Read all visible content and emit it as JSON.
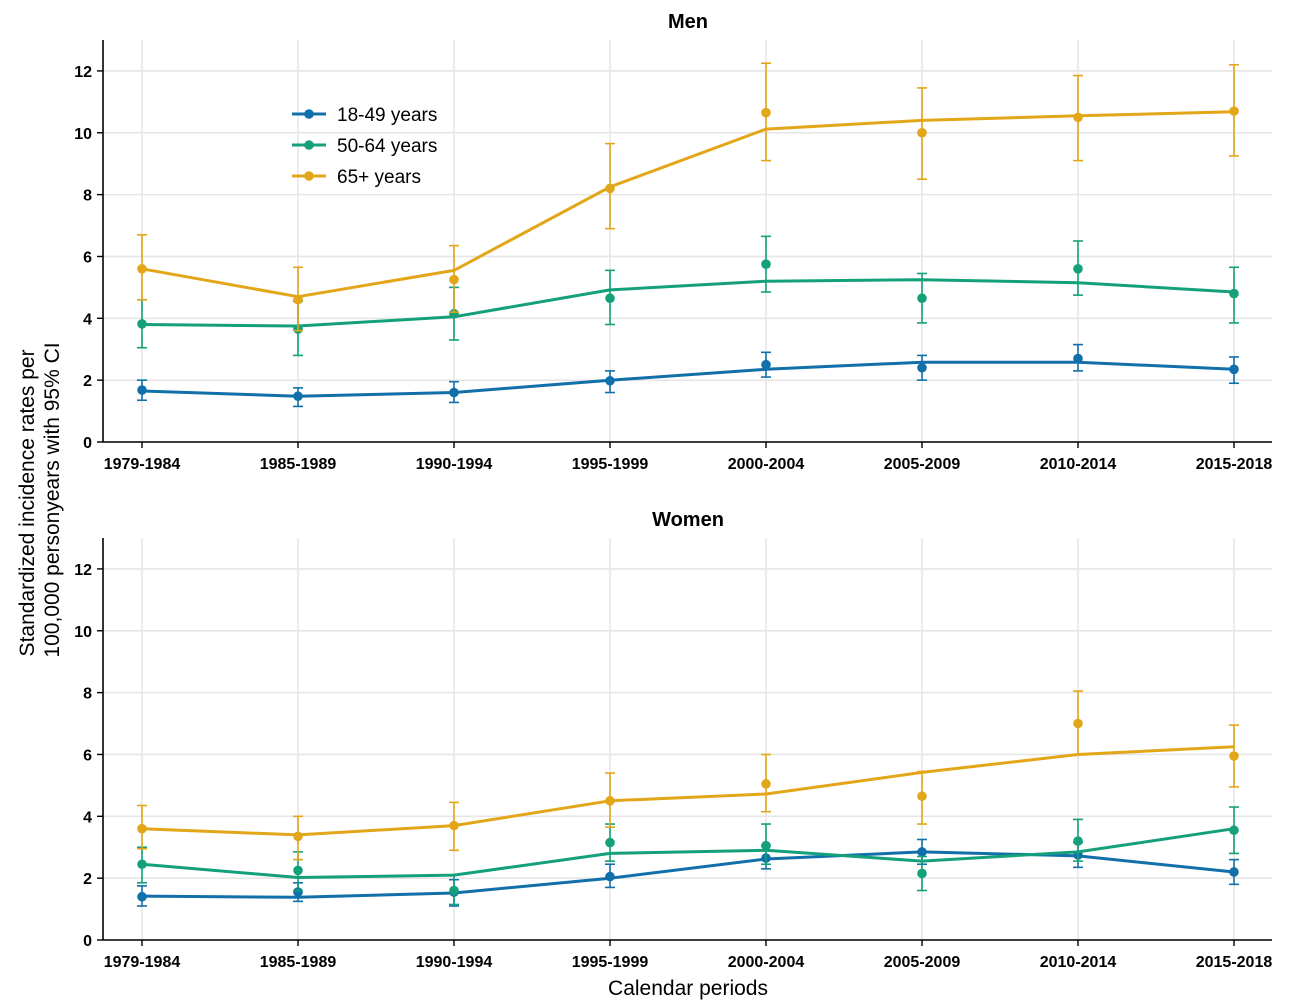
{
  "chart_data": [
    {
      "type": "line",
      "title": "Men",
      "categories": [
        "1979-1984",
        "1985-1989",
        "1990-1994",
        "1995-1999",
        "2000-2004",
        "2005-2009",
        "2010-2014",
        "2015-2018"
      ],
      "ylim": [
        0,
        13
      ],
      "yticks": [
        0,
        2,
        4,
        6,
        8,
        10,
        12
      ],
      "grid": true,
      "legend": "top-left",
      "series": [
        {
          "name": "18-49 years",
          "color": "#1170AA",
          "trend": [
            1.65,
            1.48,
            1.6,
            2.0,
            2.35,
            2.58,
            2.58,
            2.35
          ],
          "points": [
            1.68,
            1.48,
            1.6,
            1.98,
            2.5,
            2.4,
            2.7,
            2.35
          ],
          "ci_low": [
            1.35,
            1.15,
            1.28,
            1.6,
            2.1,
            2.0,
            2.3,
            1.9
          ],
          "ci_high": [
            2.0,
            1.75,
            1.95,
            2.3,
            2.9,
            2.8,
            3.15,
            2.75
          ]
        },
        {
          "name": "50-64 years",
          "color": "#14A07A",
          "trend": [
            3.8,
            3.75,
            4.05,
            4.92,
            5.2,
            5.25,
            5.15,
            4.85
          ],
          "points": [
            3.82,
            3.65,
            4.15,
            4.65,
            5.75,
            4.65,
            5.6,
            4.8
          ],
          "ci_low": [
            3.05,
            2.8,
            3.3,
            3.8,
            4.85,
            3.85,
            4.75,
            3.85
          ],
          "ci_high": [
            4.6,
            4.55,
            5.0,
            5.55,
            6.65,
            5.45,
            6.5,
            5.65
          ]
        },
        {
          "name": "65+ years",
          "color": "#E2A618",
          "trend": [
            5.6,
            4.7,
            5.55,
            8.25,
            10.12,
            10.4,
            10.55,
            10.68
          ],
          "points": [
            5.6,
            4.6,
            5.25,
            8.2,
            10.65,
            10.0,
            10.5,
            10.7
          ],
          "ci_low": [
            4.6,
            3.6,
            4.2,
            6.9,
            9.1,
            8.5,
            9.1,
            9.25
          ],
          "ci_high": [
            6.7,
            5.65,
            6.35,
            9.65,
            12.25,
            11.45,
            11.85,
            12.2
          ]
        }
      ]
    },
    {
      "type": "line",
      "title": "Women",
      "categories": [
        "1979-1984",
        "1985-1989",
        "1990-1994",
        "1995-1999",
        "2000-2004",
        "2005-2009",
        "2010-2014",
        "2015-2018"
      ],
      "ylim": [
        0,
        13
      ],
      "yticks": [
        0,
        2,
        4,
        6,
        8,
        10,
        12
      ],
      "grid": true,
      "series": [
        {
          "name": "18-49 years",
          "color": "#1170AA",
          "trend": [
            1.42,
            1.38,
            1.52,
            2.0,
            2.62,
            2.85,
            2.72,
            2.2
          ],
          "points": [
            1.4,
            1.55,
            1.55,
            2.05,
            2.65,
            2.85,
            2.75,
            2.2
          ],
          "ci_low": [
            1.1,
            1.25,
            1.1,
            1.7,
            2.3,
            2.45,
            2.35,
            1.8
          ],
          "ci_high": [
            1.75,
            1.85,
            1.95,
            2.45,
            3.05,
            3.25,
            3.15,
            2.6
          ]
        },
        {
          "name": "50-64 years",
          "color": "#14A07A",
          "trend": [
            2.45,
            2.02,
            2.1,
            2.8,
            2.9,
            2.55,
            2.85,
            3.6
          ],
          "points": [
            2.45,
            2.25,
            1.6,
            3.15,
            3.05,
            2.15,
            3.2,
            3.55
          ],
          "ci_low": [
            1.85,
            1.6,
            1.15,
            2.55,
            2.45,
            1.6,
            2.55,
            2.8
          ],
          "ci_high": [
            3.0,
            2.85,
            2.1,
            3.75,
            3.75,
            2.7,
            3.9,
            4.3
          ]
        },
        {
          "name": "65+ years",
          "color": "#E2A618",
          "trend": [
            3.6,
            3.4,
            3.7,
            4.5,
            4.72,
            5.42,
            6.0,
            6.25
          ],
          "points": [
            3.6,
            3.35,
            3.7,
            4.5,
            5.05,
            4.65,
            7.0,
            5.95
          ],
          "ci_low": [
            2.95,
            2.6,
            2.9,
            3.65,
            4.15,
            3.75,
            6.0,
            4.95
          ],
          "ci_high": [
            4.35,
            4.0,
            4.45,
            5.4,
            6.0,
            5.45,
            8.05,
            6.95
          ]
        }
      ]
    }
  ],
  "ylabel_lines": [
    "Standardized incidence rates per",
    "100,000 personyears with 95% CI"
  ],
  "xlabel": "Calendar periods"
}
